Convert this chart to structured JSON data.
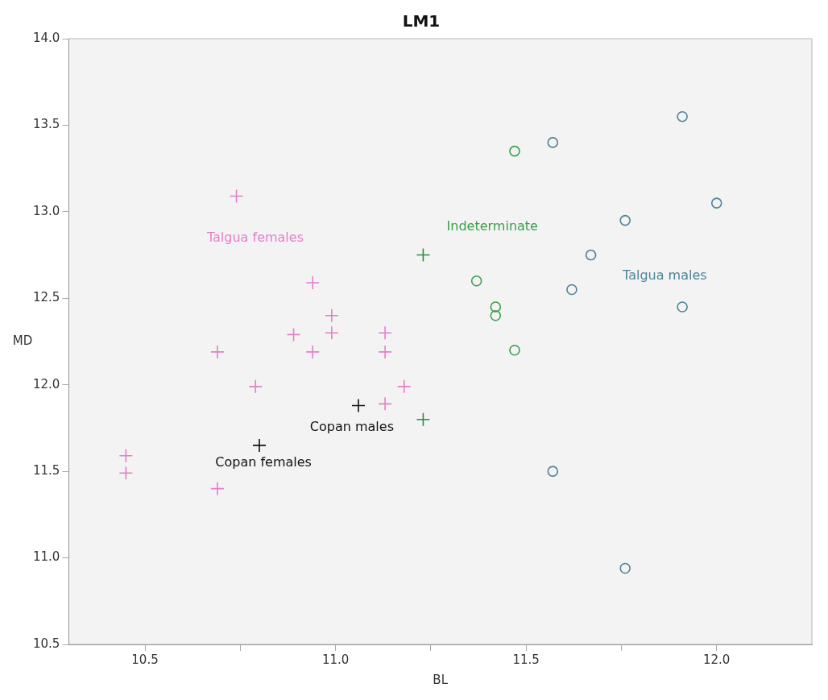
{
  "chart_data": {
    "type": "scatter",
    "title": "LM1",
    "xlabel": "BL",
    "ylabel": "MD",
    "grid": false,
    "legend": false,
    "xlim": [
      10.3,
      12.25
    ],
    "ylim": [
      10.5,
      14.0
    ],
    "xticks": [
      {
        "value": 10.5,
        "label": "10.5"
      },
      {
        "value": 10.75,
        "label": null
      },
      {
        "value": 11,
        "label": "11.0"
      },
      {
        "value": 11.25,
        "label": null
      },
      {
        "value": 11.5,
        "label": "11.5"
      },
      {
        "value": 11.75,
        "label": null
      },
      {
        "value": 12,
        "label": "12.0"
      }
    ],
    "yticks": [
      {
        "value": 10.5,
        "label": "10.5"
      },
      {
        "value": 11,
        "label": "11.0"
      },
      {
        "value": 11.5,
        "label": "11.5"
      },
      {
        "value": 12,
        "label": "12.0"
      },
      {
        "value": 12.5,
        "label": "12.5"
      },
      {
        "value": 13,
        "label": "13.0"
      },
      {
        "value": 13.5,
        "label": "13.5"
      },
      {
        "value": 14,
        "label": "14.0"
      }
    ],
    "series": [
      {
        "name": "Talgua females",
        "color": "#e47fc9",
        "marker": "cross",
        "x": [
          10.74,
          10.94,
          10.99,
          10.89,
          10.99,
          10.94,
          10.69,
          11.13,
          11.13,
          10.79,
          11.18,
          11.13,
          10.45,
          10.45,
          10.69
        ],
        "values": [
          13.09,
          12.59,
          12.4,
          12.29,
          12.3,
          12.19,
          12.19,
          12.3,
          12.19,
          11.99,
          11.99,
          11.89,
          11.59,
          11.49,
          11.4
        ]
      },
      {
        "name": "Copan males",
        "color": "#111111",
        "marker": "cross",
        "x": [
          11.06
        ],
        "values": [
          11.88
        ]
      },
      {
        "name": "Copan females",
        "color": "#111111",
        "marker": "cross",
        "x": [
          10.8
        ],
        "values": [
          11.65
        ]
      },
      {
        "color": "#2e8b45",
        "marker": "cross",
        "x": [
          11.23,
          11.23
        ],
        "values": [
          12.75,
          11.8
        ]
      },
      {
        "name": "Indeterminate",
        "color": "#3c9e4c",
        "marker": "circle",
        "x": [
          11.47,
          11.37,
          11.42,
          11.42,
          11.47
        ],
        "values": [
          13.35,
          12.6,
          12.45,
          12.4,
          12.2
        ]
      },
      {
        "name": "Talgua males",
        "color": "#4e8398",
        "marker": "circle",
        "x": [
          11.91,
          11.57,
          12.0,
          11.76,
          11.67,
          11.62,
          11.91,
          11.57,
          11.76
        ],
        "values": [
          13.55,
          13.4,
          13.05,
          12.95,
          12.75,
          12.55,
          12.45,
          11.5,
          10.94
        ]
      }
    ]
  }
}
